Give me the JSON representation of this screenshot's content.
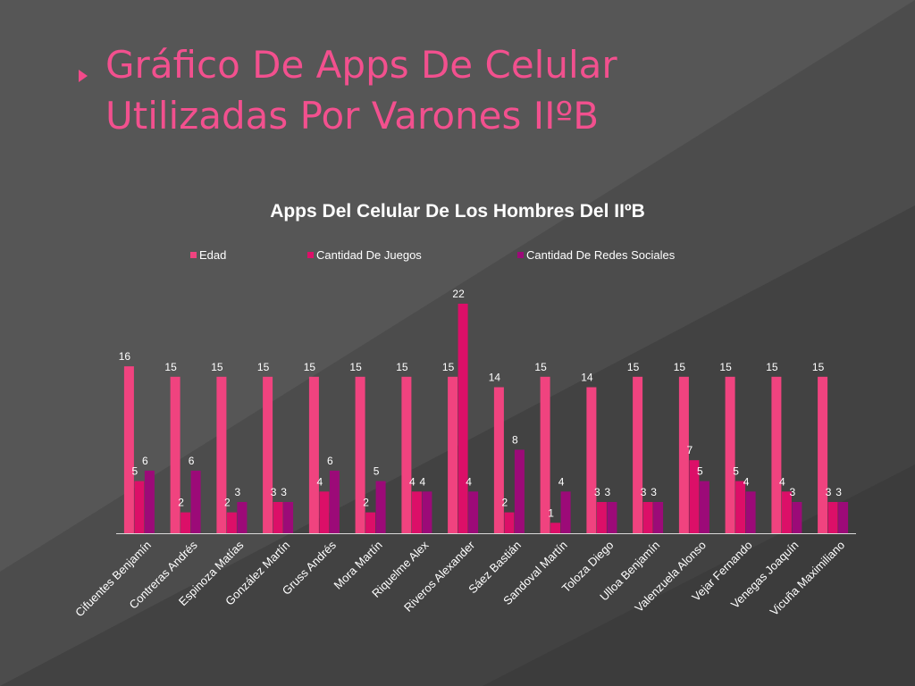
{
  "slide": {
    "title_line1": "Gráfico De Apps De Celular",
    "title_line2": "Utilizadas Por Varones IIºB"
  },
  "colors": {
    "background": "#4a4a4a",
    "title": "#f2508e",
    "edad": "#f0437f",
    "juegos": "#dc0f68",
    "redes": "#9c0a78"
  },
  "chart_data": {
    "type": "bar",
    "title": "Apps Del Celular De Los Hombres Del IIºB",
    "categories": [
      "Cifuentes Benjamín",
      "Contreras Andrés",
      "Espinoza Matías",
      "González Martín",
      "Gruss Andrés",
      "Mora Martín",
      "Riquelme Alex",
      "Riveros Alexander",
      "Sáez Bastián",
      "Sandoval Martín",
      "Toloza Diego",
      "Ulloa Benjamín",
      "Valenzuela Alonso",
      "Vejar Fernando",
      "Venegas Joaquín",
      "Vicuña Maximiliano"
    ],
    "series": [
      {
        "name": "Edad",
        "color": "#f0437f",
        "values": [
          16,
          15,
          15,
          15,
          15,
          15,
          15,
          15,
          14,
          15,
          14,
          15,
          15,
          15,
          15,
          15
        ]
      },
      {
        "name": "Cantidad De Juegos",
        "color": "#dc0f68",
        "values": [
          5,
          2,
          2,
          3,
          4,
          2,
          4,
          22,
          2,
          1,
          3,
          3,
          7,
          5,
          4,
          3
        ]
      },
      {
        "name": "Cantidad De Redes Sociales",
        "color": "#9c0a78",
        "values": [
          6,
          6,
          3,
          3,
          6,
          5,
          4,
          4,
          8,
          4,
          3,
          3,
          5,
          4,
          3,
          3
        ]
      }
    ],
    "ylim": [
      0,
      22
    ],
    "legend": "top",
    "grid": false,
    "data_labels": true
  }
}
